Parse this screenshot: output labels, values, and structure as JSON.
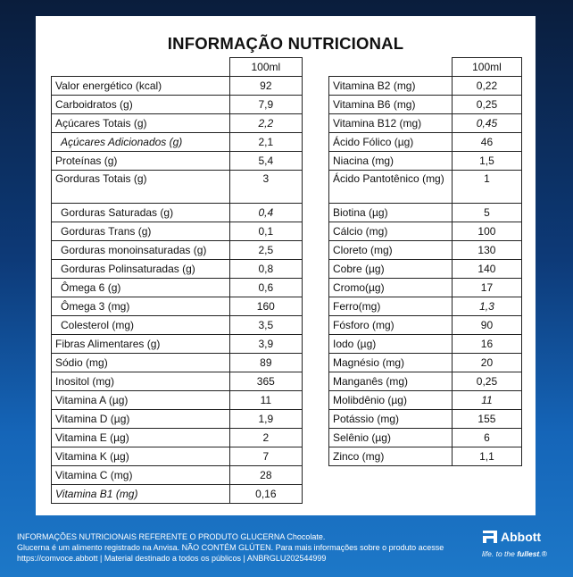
{
  "title": "INFORMAÇÃO NUTRICIONAL",
  "column_header": "100ml",
  "left_rows": [
    {
      "label": "Valor energético (kcal)",
      "value": "92"
    },
    {
      "label": "Carboidratos (g)",
      "value": "7,9"
    },
    {
      "label": "Açúcares Totais (g)",
      "value": "2,2"
    },
    {
      "label": "Açúcares Adicionados (g)",
      "value": "2,1"
    },
    {
      "label": "Proteínas (g)",
      "value": "5,4"
    },
    {
      "label": "Gorduras Totais (g)",
      "value": "3"
    },
    {
      "label": "Gorduras Saturadas (g)",
      "value": "0,4"
    },
    {
      "label": "Gorduras Trans (g)",
      "value": "0,1"
    },
    {
      "label": "Gorduras monoinsaturadas (g)",
      "value": "2,5"
    },
    {
      "label": "Gorduras Polinsaturadas (g)",
      "value": "0,8"
    },
    {
      "label": "Ômega 6 (g)",
      "value": "0,6"
    },
    {
      "label": "Ômega 3 (mg)",
      "value": "160"
    },
    {
      "label": "Colesterol (mg)",
      "value": "3,5"
    },
    {
      "label": "Fibras Alimentares (g)",
      "value": "3,9"
    },
    {
      "label": "Sódio (mg)",
      "value": "89"
    },
    {
      "label": "Inositol (mg)",
      "value": "365"
    },
    {
      "label": "Vitamina A (µg)",
      "value": "11"
    },
    {
      "label": "Vitamina D (µg)",
      "value": "1,9"
    },
    {
      "label": "Vitamina E (µg)",
      "value": "2"
    },
    {
      "label": "Vitamina K (µg)",
      "value": "7"
    },
    {
      "label": "Vitamina C (mg)",
      "value": "28"
    },
    {
      "label": "Vitamina B1 (mg)",
      "value": "0,16"
    }
  ],
  "right_rows": [
    {
      "label": "Vitamina B2 (mg)",
      "value": "0,22"
    },
    {
      "label": "Vitamina B6 (mg)",
      "value": "0,25"
    },
    {
      "label": "Vitamina B12 (mg)",
      "value": "0,45"
    },
    {
      "label": "Ácido Fólico (µg)",
      "value": "46"
    },
    {
      "label": "Niacina (mg)",
      "value": "1,5"
    },
    {
      "label": "Ácido Pantotênico (mg)",
      "value": "1"
    },
    {
      "label": "Biotina (µg)",
      "value": "5"
    },
    {
      "label": "Cálcio (mg)",
      "value": "100"
    },
    {
      "label": "Cloreto (mg)",
      "value": "130"
    },
    {
      "label": "Cobre (µg)",
      "value": "140"
    },
    {
      "label": "Cromo(µg)",
      "value": "17"
    },
    {
      "label": "Ferro(mg)",
      "value": "1,3"
    },
    {
      "label": "Fósforo (mg)",
      "value": "90"
    },
    {
      "label": "Iodo (µg)",
      "value": "16"
    },
    {
      "label": "Magnésio (mg)",
      "value": "20"
    },
    {
      "label": "Manganês (mg)",
      "value": "0,25"
    },
    {
      "label": "Molibdênio (µg)",
      "value": "11"
    },
    {
      "label": "Potássio (mg)",
      "value": "155"
    },
    {
      "label": "Selênio (µg)",
      "value": "6"
    },
    {
      "label": "Zinco (mg)",
      "value": "1,1"
    }
  ],
  "footer": {
    "line1": "INFORMAÇÕES NUTRICIONAIS REFERENTE O PRODUTO GLUCERNA Chocolate.",
    "line2": "Glucerna é um alimento registrado na Anvisa. NÃO CONTÉM GLÚTEN. Para mais informações sobre o produto acesse",
    "line3": "https://comvoce.abbott | Material destinado a todos os públicos | ANBRGLU202544999"
  },
  "logo": {
    "name": "Abbott",
    "tagline_pre": "life. to the ",
    "tagline_bold": "fullest",
    "tagline_post": ".®"
  }
}
